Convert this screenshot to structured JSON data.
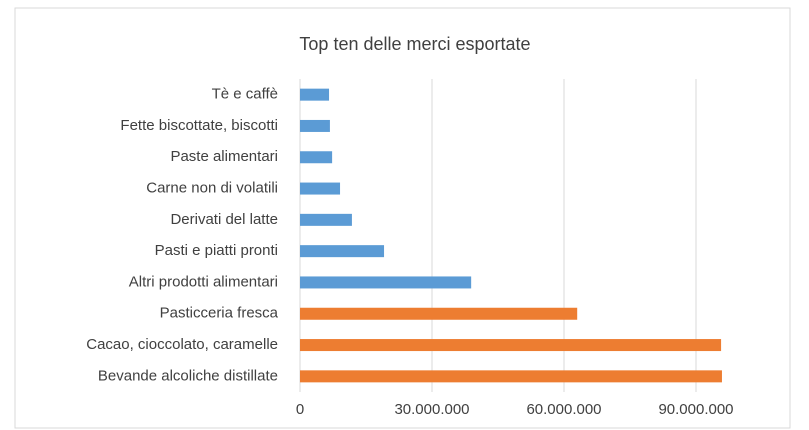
{
  "chart_data": {
    "type": "hbar",
    "title": "Top ten delle merci esportate",
    "categories": [
      "Tè e caffè",
      "Fette biscottate, biscotti",
      "Paste alimentari",
      "Carne non di volatili",
      "Derivati del latte",
      "Pasti e piatti pronti",
      "Altri prodotti alimentari",
      "Pasticceria fresca",
      "Cacao, cioccolato, caramelle",
      "Bevande alcoliche distillate"
    ],
    "values": [
      6600000,
      6800000,
      7300000,
      9100000,
      11800000,
      19100000,
      38900000,
      63000000,
      95700000,
      95900000
    ],
    "colors": [
      "#5b9bd5",
      "#5b9bd5",
      "#5b9bd5",
      "#5b9bd5",
      "#5b9bd5",
      "#5b9bd5",
      "#5b9bd5",
      "#ed7d31",
      "#ed7d31",
      "#ed7d31"
    ],
    "xlim": [
      0,
      100000000
    ],
    "xticks": [
      0,
      {
        "value": 30000000,
        "label": "30.000.000"
      },
      {
        "value": 60000000,
        "label": "60.000.000"
      },
      {
        "value": 90000000,
        "label": "90.000.000"
      }
    ],
    "grid": true
  }
}
